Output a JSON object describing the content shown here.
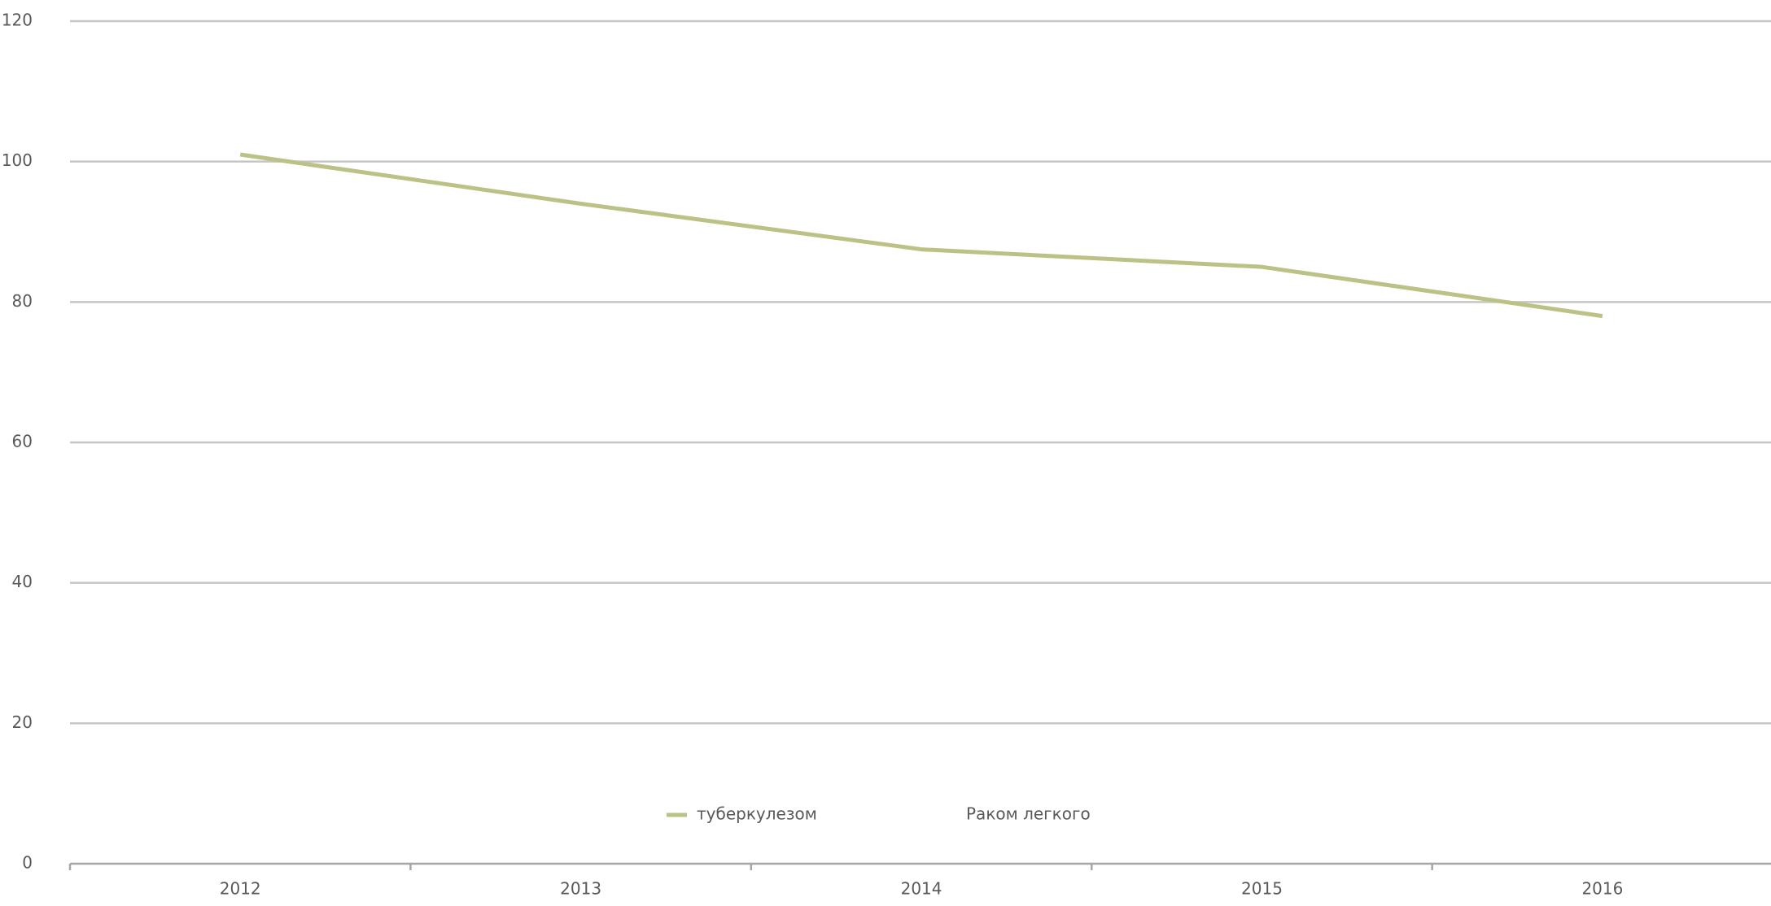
{
  "chart_data": {
    "type": "line",
    "categories": [
      "2012",
      "2013",
      "2014",
      "2015",
      "2016"
    ],
    "series": [
      {
        "name": "туберкулезом",
        "color": "#bcc285",
        "values": [
          101,
          94,
          87.5,
          85,
          78
        ]
      },
      {
        "name": "Раком легкого",
        "values": [
          null,
          null,
          null,
          null,
          null
        ]
      }
    ],
    "ylim": [
      0,
      120
    ],
    "yticks": [
      0,
      20,
      40,
      60,
      80,
      100,
      120
    ],
    "grid": true,
    "legend": "bottom"
  }
}
